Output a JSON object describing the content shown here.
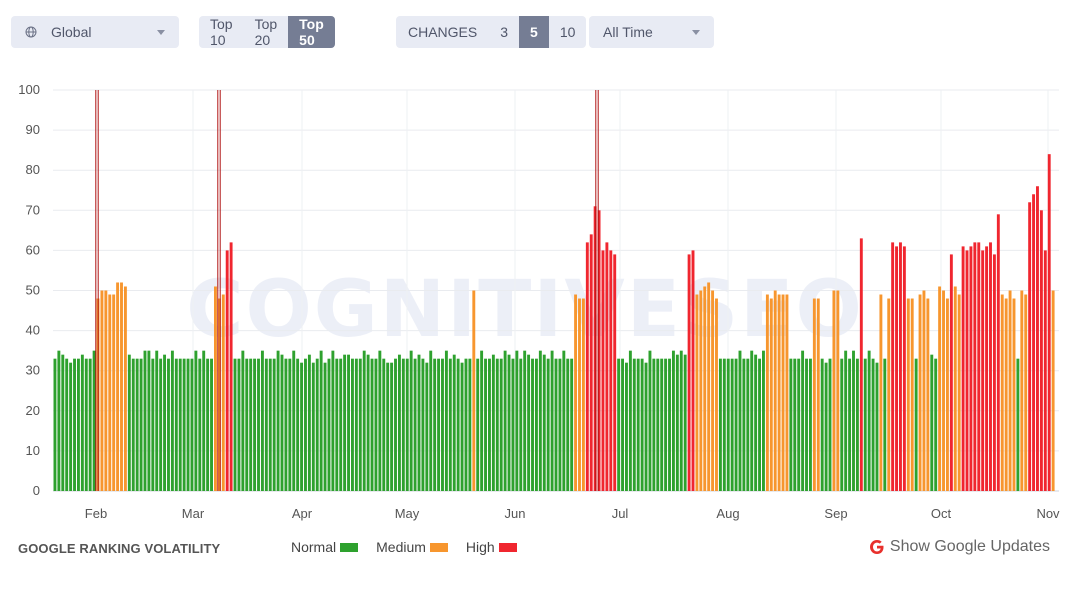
{
  "filters": {
    "region": {
      "label": "Global",
      "icon": "globe-icon"
    },
    "top": {
      "options": [
        "Top 10",
        "Top 20",
        "Top 50"
      ],
      "selected": "Top 50"
    },
    "changes": {
      "label": "CHANGES",
      "options": [
        "3",
        "5",
        "10"
      ],
      "selected": "5"
    },
    "period": {
      "label": "All Time"
    }
  },
  "watermark": "COGNITIVESEO",
  "footer": {
    "title": "GOOGLE RANKING VOLATILITY",
    "legend": [
      {
        "label": "Normal",
        "color": "#2ea12e"
      },
      {
        "label": "Medium",
        "color": "#f7962e"
      },
      {
        "label": "High",
        "color": "#f0262f"
      }
    ],
    "show_updates": {
      "label": "Show Google Updates",
      "icon": "google-g-icon",
      "color": "#e8302c"
    }
  },
  "chart_data": {
    "type": "bar",
    "ylim": [
      0,
      100
    ],
    "yticks": [
      0,
      10,
      20,
      30,
      40,
      50,
      60,
      70,
      80,
      90,
      100
    ],
    "xtick_labels": [
      "Feb",
      "Mar",
      "Apr",
      "May",
      "Jun",
      "Jul",
      "Aug",
      "Sep",
      "Oct",
      "Nov"
    ],
    "colors": {
      "normal": "#2ea12e",
      "medium": "#f7962e",
      "high": "#f0262f",
      "update": "#b01515"
    },
    "series": [
      {
        "name": "Normal",
        "values": [
          33,
          35,
          34,
          33,
          32,
          33,
          33,
          34,
          33,
          33,
          35,
          34,
          33,
          33,
          33,
          35,
          35,
          33,
          35,
          33,
          34,
          33,
          35,
          33,
          33,
          33,
          33,
          33,
          35,
          33,
          35,
          33,
          33,
          33,
          33,
          35,
          33,
          33,
          33,
          33,
          35,
          33,
          33,
          33,
          35,
          34,
          33,
          33,
          35,
          33,
          32,
          33,
          34,
          32,
          33,
          35,
          32,
          33,
          35,
          33,
          33,
          34,
          34,
          33,
          33,
          33,
          35,
          34,
          33,
          33,
          35,
          33,
          32,
          32,
          33,
          34,
          33,
          33,
          35,
          33,
          34,
          33,
          32,
          35,
          33,
          33,
          33,
          35,
          33,
          34,
          33,
          32,
          33,
          33,
          33,
          35,
          33,
          33,
          34,
          33,
          33,
          35,
          34,
          33,
          35,
          33,
          35,
          34,
          33,
          33,
          35,
          34,
          33,
          35,
          33,
          33,
          35,
          33,
          33,
          33,
          33,
          32,
          35,
          33,
          33,
          33,
          32,
          35,
          33,
          33,
          33,
          33,
          33,
          35,
          34,
          35,
          34,
          33,
          33,
          33,
          33,
          33,
          35,
          33,
          33,
          35,
          34,
          33,
          35,
          33,
          33,
          33,
          35,
          33,
          33,
          33,
          32,
          33,
          33,
          35,
          33,
          35,
          33,
          33,
          35,
          33,
          32,
          33,
          33,
          34,
          33,
          33,
          33
        ]
      },
      {
        "name": "Medium",
        "values": [
          48,
          50,
          50,
          49,
          49,
          52,
          52,
          51,
          51,
          48,
          49,
          50,
          49,
          48,
          48,
          49,
          50,
          51,
          52,
          50,
          48,
          49,
          48,
          50,
          49,
          49,
          49,
          48,
          48,
          50,
          50,
          49,
          48,
          48,
          48,
          49,
          50,
          48,
          51,
          50,
          48,
          51,
          49,
          49,
          48,
          50,
          48,
          50,
          49,
          50,
          50,
          52,
          52,
          51,
          51,
          48,
          48,
          49,
          50,
          50,
          51,
          52,
          52,
          52,
          52,
          52,
          48,
          48,
          50
        ]
      },
      {
        "name": "High",
        "values": [
          60,
          62,
          62,
          64,
          71,
          70,
          60,
          62,
          60,
          59,
          59,
          60,
          63,
          62,
          61,
          62,
          61,
          59,
          61,
          60,
          61,
          62,
          62,
          60,
          61,
          62,
          59,
          69,
          72,
          74,
          76,
          70,
          60,
          84
        ]
      }
    ]
  }
}
